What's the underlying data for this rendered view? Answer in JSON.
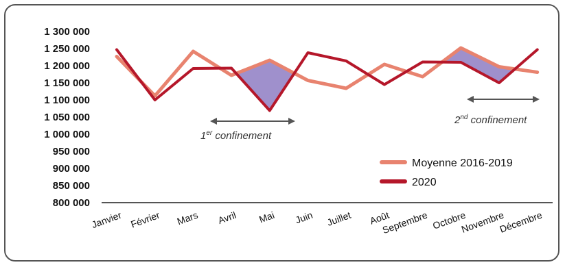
{
  "chart_data": {
    "type": "line",
    "categories": [
      "Janvier",
      "Février",
      "Mars",
      "Avril",
      "Mai",
      "Juin",
      "Juillet",
      "Août",
      "Septembre",
      "Octobre",
      "Novembre",
      "Décembre"
    ],
    "series": [
      {
        "name": "Moyenne 2016-2019",
        "color": "#e8836f",
        "values": [
          1227000,
          1112000,
          1242000,
          1172000,
          1216000,
          1157000,
          1134000,
          1204000,
          1168000,
          1252000,
          1197000,
          1181000
        ]
      },
      {
        "name": "2020",
        "color": "#b5172a",
        "values": [
          1247000,
          1100000,
          1192000,
          1193000,
          1069000,
          1238000,
          1214000,
          1145000,
          1211000,
          1210000,
          1150000,
          1247000
        ]
      }
    ],
    "yticks": [
      "1 300 000",
      "1 250 000",
      "1 200 000",
      "1 150 000",
      "1 100 000",
      "1 050 000",
      "1 000 000",
      "950 000",
      "900 000",
      "850 000",
      "800 000"
    ],
    "ylim": [
      800000,
      1300000
    ],
    "fill_color": "#8e7cc3",
    "annotations": [
      {
        "base": "1",
        "sup": "er",
        "text": " confinement"
      },
      {
        "base": "2",
        "sup": "nd",
        "text": " confinement"
      }
    ],
    "legend_position": "right"
  }
}
